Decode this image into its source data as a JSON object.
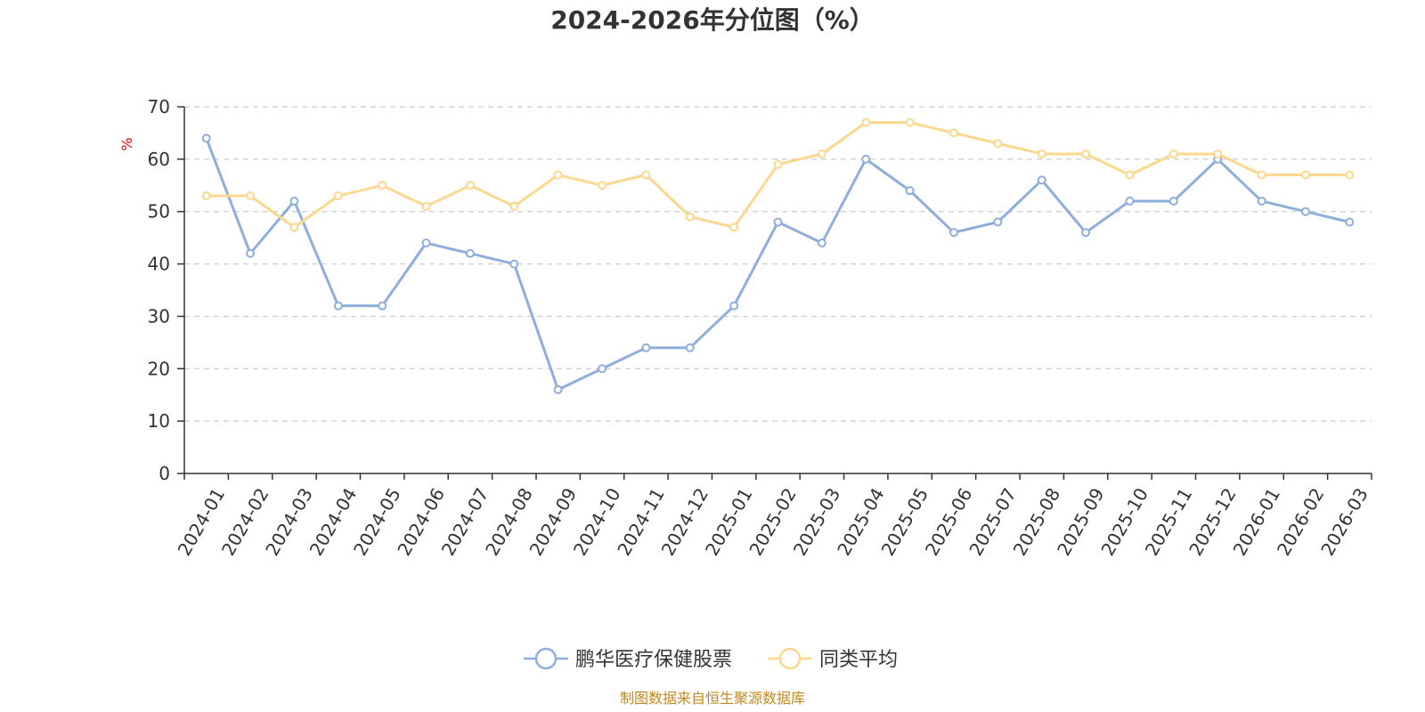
{
  "chart_data": {
    "type": "line",
    "title": "2024-2026年分位图（%）",
    "unit_label": "%",
    "ylim": [
      0,
      70
    ],
    "y_ticks": [
      0,
      10,
      20,
      30,
      40,
      50,
      60,
      70
    ],
    "grid": true,
    "legend_position": "bottom-center",
    "categories": [
      "2024-01",
      "2024-02",
      "2024-03",
      "2024-04",
      "2024-05",
      "2024-06",
      "2024-07",
      "2024-08",
      "2024-09",
      "2024-10",
      "2024-11",
      "2024-12",
      "2025-01",
      "2025-02",
      "2025-03",
      "2025-04",
      "2025-05",
      "2025-06",
      "2025-07",
      "2025-08",
      "2025-09",
      "2025-10",
      "2025-11",
      "2025-12",
      "2026-01",
      "2026-02",
      "2026-03"
    ],
    "series": [
      {
        "name": "鹏华医疗保健股票",
        "color": "#8eaedb",
        "values": [
          64,
          42,
          52,
          32,
          32,
          44,
          42,
          40,
          16,
          20,
          24,
          24,
          32,
          48,
          44,
          60,
          54,
          46,
          48,
          56,
          46,
          52,
          52,
          60,
          52,
          50,
          48
        ]
      },
      {
        "name": "同类平均",
        "color": "#fbd88e",
        "values": [
          53,
          53,
          47,
          53,
          55,
          51,
          55,
          51,
          57,
          55,
          57,
          49,
          47,
          59,
          61,
          67,
          67,
          65,
          63,
          61,
          61,
          57,
          61,
          61,
          57,
          57,
          57
        ]
      }
    ]
  },
  "footer": {
    "source": "制图数据来自恒生聚源数据库"
  }
}
